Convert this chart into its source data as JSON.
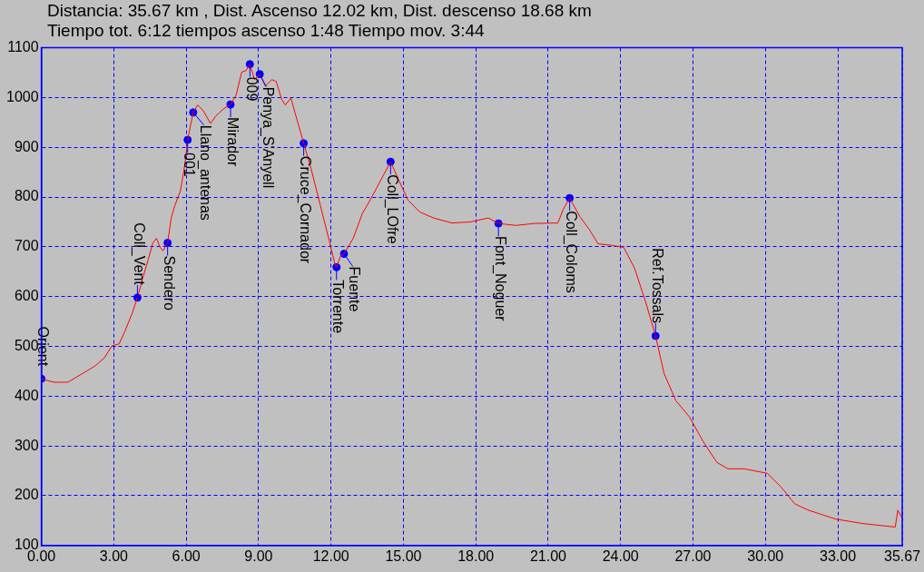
{
  "chart_data": {
    "type": "line",
    "title": "Distancia: 35.67 km , Dist. Ascenso 12.02 km,  Dist. descenso 18.68 km",
    "subtitle": "Tiempo tot. 6:12     tiempos ascenso 1:48 Tiempo mov. 3:44",
    "series": [
      {
        "color": "#ff0000",
        "x": [
          0,
          0.27,
          0.53,
          1.1,
          1.48,
          1.86,
          2.23,
          2.61,
          2.92,
          3.22,
          3.45,
          3.75,
          3.98,
          4.2,
          4.43,
          4.62,
          4.77,
          4.92,
          5.04,
          5.23,
          5.38,
          5.53,
          5.76,
          5.95,
          6.06,
          6.29,
          6.48,
          6.7,
          7.01,
          7.23,
          7.54,
          7.84,
          8.07,
          8.3,
          8.48,
          8.64,
          8.83,
          9.05,
          9.28,
          9.55,
          9.73,
          9.96,
          10.11,
          10.34,
          10.57,
          10.87,
          11.17,
          11.55,
          11.93,
          12.16,
          12.23,
          12.39,
          12.54,
          12.92,
          13.3,
          13.67,
          14.13,
          14.47,
          14.81,
          15.19,
          15.68,
          16.25,
          17.01,
          17.77,
          18.52,
          18.94,
          19.66,
          20.42,
          21.4,
          21.63,
          21.89,
          22.31,
          22.69,
          23.07,
          23.64,
          24.13,
          24.58,
          25.04,
          25.45,
          25.8,
          26.29,
          26.86,
          27.42,
          27.99,
          28.45,
          29.13,
          30.08,
          30.64,
          31.21,
          31.78,
          32.92,
          34.05,
          35.38,
          35.49,
          35.67
        ],
        "values": [
          435,
          431,
          428,
          428,
          439,
          450,
          461,
          477,
          501,
          505,
          529,
          565,
          598,
          637,
          675,
          708,
          717,
          699,
          692,
          708,
          758,
          783,
          812,
          867,
          915,
          970,
          985,
          974,
          948,
          963,
          977,
          986,
          1005,
          1051,
          1054,
          1067,
          1036,
          1047,
          1023,
          1036,
          1032,
          996,
          985,
          999,
          959,
          908,
          858,
          785,
          712,
          666,
          659,
          681,
          686,
          717,
          767,
          798,
          840,
          871,
          834,
          794,
          770,
          758,
          748,
          750,
          758,
          747,
          743,
          747,
          748,
          776,
          798,
          761,
          736,
          706,
          703,
          699,
          657,
          589,
          521,
          446,
          391,
          358,
          309,
          267,
          254,
          254,
          245,
          218,
          184,
          171,
          153,
          144,
          137,
          171,
          155
        ]
      },
      {
        "type": "scatter",
        "color": "#0000ff",
        "x": [
          0,
          3.98,
          5.23,
          6.06,
          6.29,
          7.84,
          8.64,
          9.05,
          10.87,
          12.23,
          12.54,
          14.47,
          18.94,
          21.89,
          25.45
        ],
        "values": [
          435,
          598,
          708,
          915,
          970,
          986,
          1067,
          1047,
          908,
          659,
          686,
          871,
          747,
          798,
          521
        ]
      }
    ],
    "annotations": [
      {
        "text": "Orient",
        "x": 0,
        "y": 435
      },
      {
        "text": "Coll_Vent",
        "x": 3.98,
        "y": 598
      },
      {
        "text": "Sendero",
        "x": 5.23,
        "y": 708
      },
      {
        "text": "001",
        "x": 6.06,
        "y": 915
      },
      {
        "text": "Llano_antenas",
        "x": 6.29,
        "y": 970
      },
      {
        "text": "Mirador",
        "x": 7.84,
        "y": 986
      },
      {
        "text": "009",
        "x": 8.64,
        "y": 1067
      },
      {
        "text": "Penya_S'Anyell",
        "x": 9.05,
        "y": 1047
      },
      {
        "text": "Cruce_Cornador",
        "x": 10.87,
        "y": 908
      },
      {
        "text": "Torrente",
        "x": 12.23,
        "y": 659
      },
      {
        "text": "Fuente",
        "x": 12.54,
        "y": 686
      },
      {
        "text": "Coll_LOfre",
        "x": 14.47,
        "y": 871
      },
      {
        "text": "Font_Noguer",
        "x": 18.94,
        "y": 747
      },
      {
        "text": "Coll_Coloms",
        "x": 21.89,
        "y": 798
      },
      {
        "text": "Ref.Tossals",
        "x": 25.45,
        "y": 521
      }
    ],
    "xlim": [
      0,
      35.67
    ],
    "xticks": [
      {
        "value": 0,
        "label": "0.00"
      },
      {
        "value": 3,
        "label": "3.00"
      },
      {
        "value": 6,
        "label": "6.00"
      },
      {
        "value": 9,
        "label": "9.00"
      },
      {
        "value": 12,
        "label": "12.00"
      },
      {
        "value": 15,
        "label": "15.00"
      },
      {
        "value": 18,
        "label": "18.00"
      },
      {
        "value": 21,
        "label": "21.00"
      },
      {
        "value": 24,
        "label": "24.00"
      },
      {
        "value": 27,
        "label": "27.00"
      },
      {
        "value": 30,
        "label": "30.00"
      },
      {
        "value": 33,
        "label": "33.00"
      },
      {
        "value": 35.67,
        "label": "35.67"
      }
    ],
    "ylim": [
      100,
      1100
    ],
    "yticks": [
      100,
      200,
      300,
      400,
      500,
      600,
      700,
      800,
      900,
      1000,
      1100
    ],
    "grid": true,
    "legend": false
  }
}
